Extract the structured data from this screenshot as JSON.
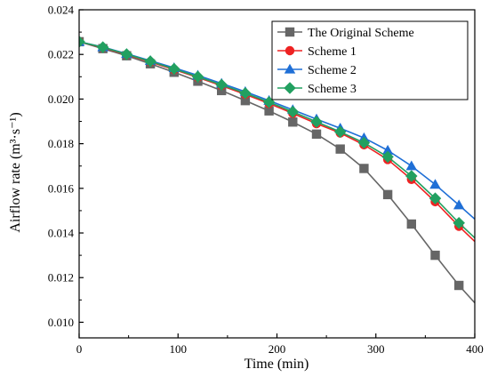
{
  "chart_data": {
    "type": "line",
    "xlabel": "Time (min)",
    "ylabel": "Airflow rate (m³·s⁻¹)",
    "xlim": [
      0,
      400
    ],
    "ylim": [
      0.0093,
      0.024
    ],
    "x_ticks": [
      0,
      100,
      200,
      300,
      400
    ],
    "y_ticks": [
      0.01,
      0.012,
      0.014,
      0.016,
      0.018,
      0.02,
      0.022,
      0.024
    ],
    "x_tick_labels": [
      "0",
      "100",
      "200",
      "300",
      "400"
    ],
    "y_tick_labels": [
      "0.010",
      "0.012",
      "0.014",
      "0.016",
      "0.018",
      "0.020",
      "0.022",
      "0.024"
    ],
    "grid": false,
    "legend_position": "top-right",
    "x": [
      0,
      24,
      48,
      72,
      96,
      120,
      144,
      168,
      192,
      216,
      240,
      264,
      288,
      312,
      336,
      360,
      384,
      400
    ],
    "series": [
      {
        "name": "The Original Scheme",
        "color": "#666666",
        "marker": "square",
        "values": [
          0.02257,
          0.02226,
          0.02194,
          0.02158,
          0.0212,
          0.0208,
          0.02038,
          0.01993,
          0.01947,
          0.01897,
          0.01843,
          0.01776,
          0.01689,
          0.01572,
          0.0144,
          0.013,
          0.01165,
          0.01087
        ]
      },
      {
        "name": "Scheme 1",
        "color": "#ee2222",
        "marker": "circle",
        "values": [
          0.02257,
          0.0223,
          0.02199,
          0.02166,
          0.02132,
          0.02097,
          0.0206,
          0.02021,
          0.0198,
          0.01936,
          0.0189,
          0.01848,
          0.01795,
          0.01729,
          0.0164,
          0.0154,
          0.0143,
          0.01362
        ]
      },
      {
        "name": "Scheme 2",
        "color": "#1f6fd6",
        "marker": "triangle",
        "values": [
          0.02257,
          0.02233,
          0.02203,
          0.02172,
          0.0214,
          0.02106,
          0.0207,
          0.02033,
          0.01993,
          0.01952,
          0.0191,
          0.01869,
          0.01826,
          0.0177,
          0.017,
          0.01617,
          0.01525,
          0.01462
        ]
      },
      {
        "name": "Scheme 3",
        "color": "#22a060",
        "marker": "diamond",
        "values": [
          0.02257,
          0.02232,
          0.02201,
          0.02169,
          0.02135,
          0.021,
          0.02064,
          0.02026,
          0.01986,
          0.01943,
          0.01898,
          0.01853,
          0.01804,
          0.01741,
          0.01655,
          0.01555,
          0.01445,
          0.01378
        ]
      }
    ]
  },
  "marker_every": 1,
  "last_point_marked": false
}
